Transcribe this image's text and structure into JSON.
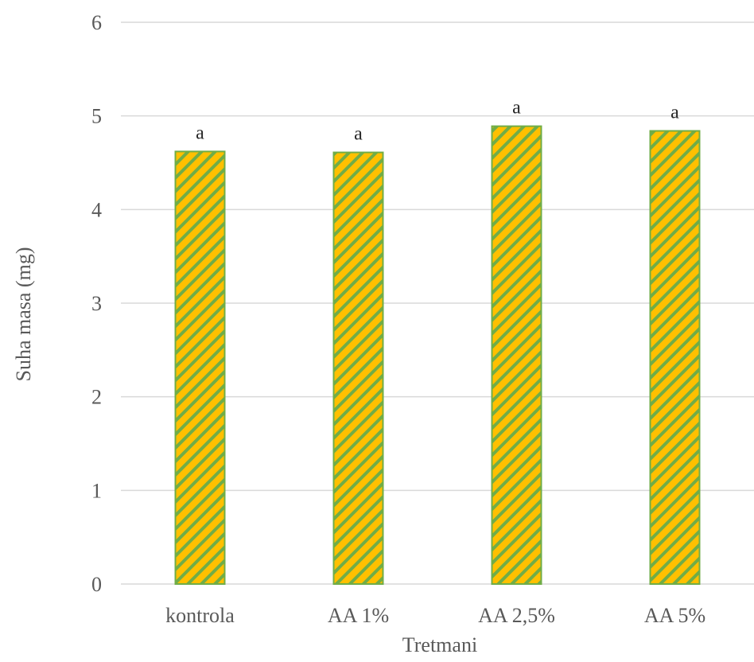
{
  "chart_data": {
    "type": "bar",
    "title": "",
    "xlabel": "Tretmani",
    "ylabel": "Suha masa (mg)",
    "categories": [
      "kontrola",
      "AA 1%",
      "AA 2,5%",
      "AA 5%"
    ],
    "values": [
      4.62,
      4.61,
      4.89,
      4.84
    ],
    "significance_labels": [
      "a",
      "a",
      "a",
      "a"
    ],
    "ylim": [
      0,
      6
    ],
    "yticks": [
      "0",
      "1",
      "2",
      "3",
      "4",
      "5",
      "6"
    ],
    "grid": true,
    "legend": "none",
    "colors": {
      "bar_fill": "#ffc000",
      "bar_hatch": "#70ad47",
      "bar_border": "#70ad47",
      "grid": "#d9d9d9"
    }
  }
}
